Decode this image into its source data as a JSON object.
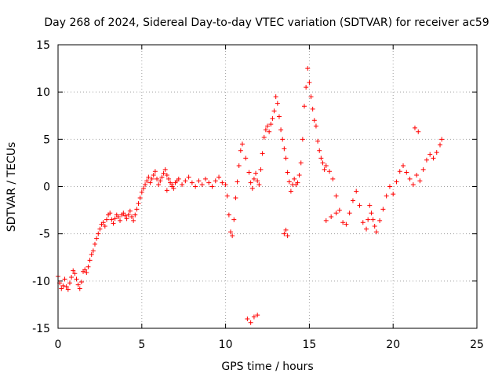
{
  "chart_data": {
    "type": "scatter",
    "title": "Day 268 of 2024, Sidereal Day-to-day VTEC variation (SDTVAR) for receiver ac59",
    "xlabel": "GPS time / hours",
    "ylabel": "SDTVAR / TECUs",
    "xlim": [
      0,
      25
    ],
    "ylim": [
      -15,
      15
    ],
    "xticks": [
      0,
      5,
      10,
      15,
      20,
      25
    ],
    "yticks": [
      -15,
      -10,
      -5,
      0,
      5,
      10,
      15
    ],
    "grid": true,
    "marker": "+",
    "series_color": "#ff0000",
    "series": [
      {
        "name": "SDTVAR",
        "x": [
          0.0,
          0.1,
          0.2,
          0.3,
          0.4,
          0.5,
          0.6,
          0.7,
          0.8,
          0.9,
          1.0,
          1.1,
          1.2,
          1.3,
          1.4,
          1.5,
          1.6,
          1.7,
          1.8,
          1.9,
          2.0,
          2.1,
          2.2,
          2.3,
          2.4,
          2.5,
          2.6,
          2.7,
          2.8,
          2.9,
          3.0,
          3.1,
          3.2,
          3.3,
          3.4,
          3.5,
          3.6,
          3.7,
          3.8,
          3.9,
          4.0,
          4.1,
          4.2,
          4.3,
          4.4,
          4.5,
          4.6,
          4.7,
          4.8,
          4.9,
          5.0,
          5.1,
          5.2,
          5.3,
          5.4,
          5.5,
          5.6,
          5.7,
          5.8,
          5.9,
          6.0,
          6.1,
          6.2,
          6.3,
          6.4,
          6.5,
          6.6,
          6.7,
          6.8,
          6.9,
          7.0,
          7.2,
          7.4,
          7.6,
          7.8,
          8.0,
          8.2,
          8.4,
          8.6,
          8.8,
          9.0,
          9.2,
          9.4,
          9.6,
          9.8,
          10.0,
          10.1,
          10.2,
          10.3,
          10.4,
          10.5,
          10.6,
          10.7,
          10.8,
          10.9,
          11.0,
          11.2,
          11.4,
          11.5,
          11.6,
          11.7,
          11.8,
          11.9,
          12.0,
          12.1,
          12.2,
          12.3,
          12.4,
          12.5,
          12.6,
          12.7,
          12.8,
          12.9,
          13.0,
          13.1,
          13.2,
          13.3,
          13.4,
          13.5,
          13.6,
          13.7,
          13.8,
          13.9,
          14.0,
          14.1,
          14.2,
          14.3,
          14.4,
          14.5,
          14.6,
          14.7,
          14.8,
          14.9,
          15.0,
          15.1,
          15.2,
          15.3,
          15.4,
          15.5,
          15.6,
          15.7,
          15.8,
          15.9,
          16.0,
          16.2,
          16.4,
          16.6,
          16.8,
          17.0,
          17.2,
          17.4,
          17.6,
          17.8,
          18.0,
          18.2,
          18.4,
          18.5,
          18.6,
          18.7,
          18.8,
          18.9,
          19.0,
          19.2,
          19.4,
          19.6,
          19.8,
          20.0,
          20.2,
          20.4,
          20.6,
          20.8,
          21.0,
          21.2,
          21.4,
          21.6,
          21.8,
          22.0,
          22.2,
          22.4,
          22.6,
          22.8,
          22.9,
          21.3,
          21.5,
          13.5,
          13.6,
          13.7,
          11.3,
          11.5,
          11.7,
          11.9,
          16.0,
          16.3,
          16.6,
          6.5,
          6.8,
          7.1
        ],
        "y": [
          -9.5,
          -10.2,
          -10.8,
          -10.5,
          -9.8,
          -10.6,
          -10.9,
          -10.2,
          -9.6,
          -8.9,
          -9.2,
          -9.8,
          -10.4,
          -10.8,
          -10.1,
          -9.0,
          -8.8,
          -9.1,
          -8.5,
          -7.8,
          -7.2,
          -6.8,
          -6.1,
          -5.5,
          -5.0,
          -4.5,
          -4.0,
          -3.8,
          -4.2,
          -3.5,
          -3.0,
          -2.8,
          -3.5,
          -3.9,
          -3.4,
          -3.0,
          -3.2,
          -3.6,
          -3.0,
          -2.8,
          -3.1,
          -3.4,
          -3.0,
          -2.6,
          -3.2,
          -3.6,
          -3.0,
          -2.4,
          -1.8,
          -1.2,
          -0.6,
          -0.2,
          0.2,
          0.6,
          1.0,
          0.4,
          0.8,
          1.2,
          1.6,
          0.8,
          0.2,
          0.6,
          1.0,
          1.4,
          1.8,
          1.2,
          0.8,
          0.4,
          0.0,
          -0.2,
          0.4,
          0.8,
          0.2,
          0.6,
          1.0,
          0.4,
          0.0,
          0.6,
          0.2,
          0.8,
          0.4,
          0.0,
          0.6,
          1.0,
          0.4,
          0.2,
          -1.0,
          -3.0,
          -4.8,
          -5.2,
          -3.5,
          -1.2,
          0.5,
          2.2,
          3.8,
          4.5,
          3.0,
          1.5,
          0.4,
          -0.2,
          0.8,
          1.4,
          0.6,
          0.2,
          1.8,
          3.5,
          5.2,
          6.0,
          6.4,
          5.8,
          6.6,
          7.2,
          8.0,
          9.5,
          8.8,
          7.4,
          6.0,
          5.0,
          4.0,
          3.0,
          1.5,
          0.5,
          -0.5,
          0.2,
          0.8,
          0.2,
          0.4,
          1.2,
          2.5,
          5.0,
          8.5,
          10.5,
          12.5,
          11.0,
          9.5,
          8.2,
          7.0,
          6.4,
          4.8,
          3.8,
          3.0,
          2.5,
          1.8,
          2.2,
          1.6,
          0.8,
          -1.0,
          -2.5,
          -3.8,
          -4.0,
          -2.8,
          -1.5,
          -0.5,
          -2.0,
          -3.8,
          -4.5,
          -3.5,
          -2.0,
          -2.8,
          -3.5,
          -4.2,
          -4.8,
          -3.6,
          -2.4,
          -1.0,
          0.0,
          -0.8,
          0.5,
          1.6,
          2.2,
          1.5,
          0.8,
          0.2,
          1.2,
          0.6,
          1.8,
          2.8,
          3.4,
          3.0,
          3.6,
          4.4,
          5.0,
          6.2,
          5.8,
          -5.0,
          -4.6,
          -5.2,
          -14.0,
          -14.4,
          -13.8,
          -13.6,
          -3.6,
          -3.2,
          -2.8,
          -0.4,
          0.2,
          0.6
        ]
      }
    ]
  }
}
